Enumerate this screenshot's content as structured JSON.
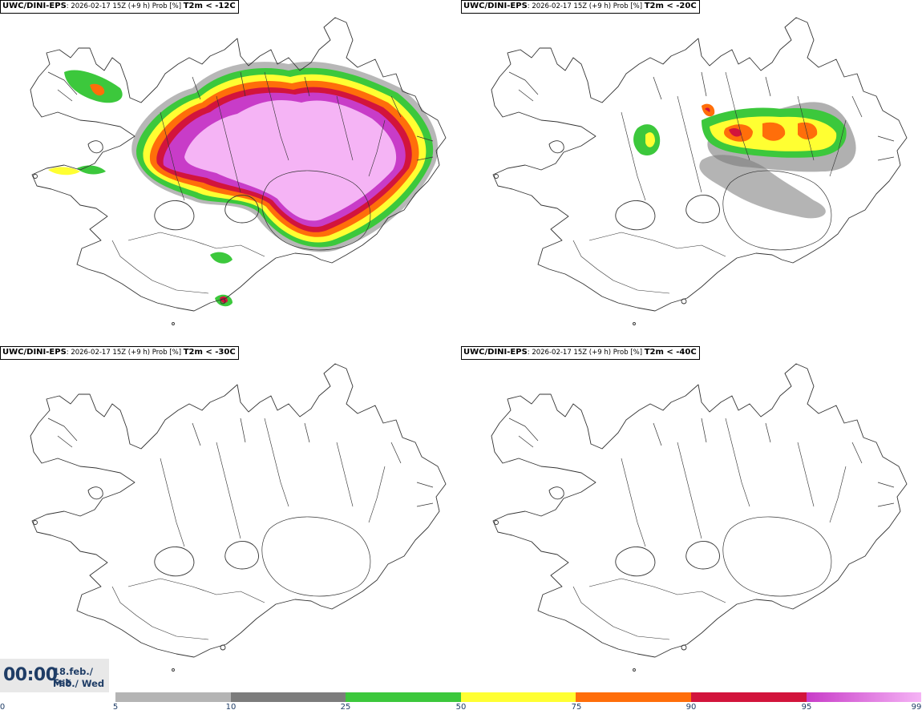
{
  "panels": [
    {
      "model": "UWC/DINI-EPS",
      "info": ": 2026-02-17 15Z (+9 h) Prob [%]",
      "threshold": "T2m < -12C"
    },
    {
      "model": "UWC/DINI-EPS",
      "info": ": 2026-02-17 15Z (+9 h) Prob [%]",
      "threshold": "T2m < -20C"
    },
    {
      "model": "UWC/DINI-EPS",
      "info": ": 2026-02-17 15Z (+9 h) Prob [%]",
      "threshold": "T2m < -30C"
    },
    {
      "model": "UWC/DINI-EPS",
      "info": ": 2026-02-17 15Z (+9 h) Prob [%]",
      "threshold": "T2m < -40C"
    }
  ],
  "time": {
    "clock": "00:00",
    "date_line": "18.feb./ Feb",
    "day_line": "Mið./ Wed"
  },
  "legend": {
    "segments": [
      {
        "color": "#b4b4b4"
      },
      {
        "color": "#7c7c7c"
      },
      {
        "color": "#3cc83c"
      },
      {
        "color": "#ffff32"
      },
      {
        "color": "#ff6e0a"
      },
      {
        "color": "#d2143c"
      },
      {
        "color": "#c83cc8",
        "gradient_to": "#f5b4f5"
      }
    ],
    "ticks": [
      "0",
      "5",
      "10",
      "25",
      "50",
      "75",
      "90",
      "95",
      "99"
    ]
  }
}
